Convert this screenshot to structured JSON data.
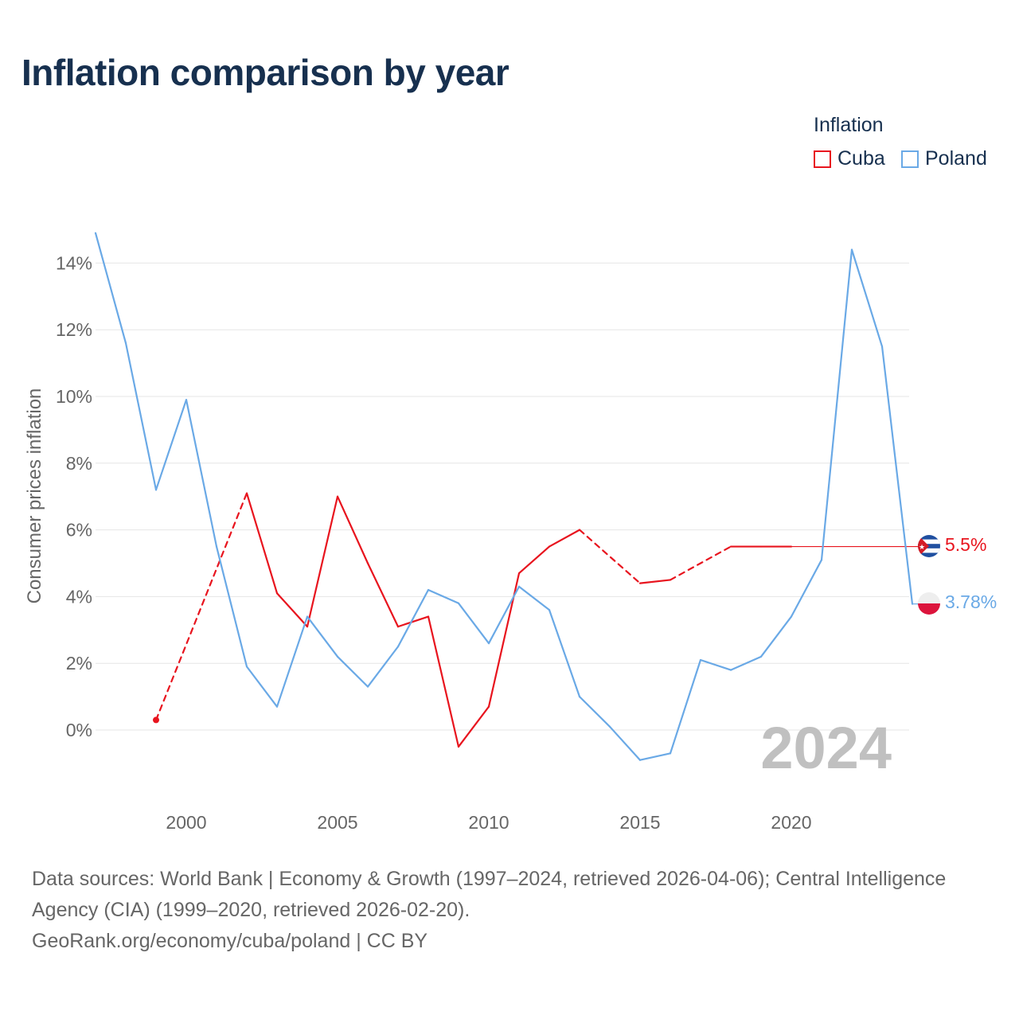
{
  "title": "Inflation comparison by year",
  "legend": {
    "title": "Inflation",
    "items": [
      {
        "label": "Cuba",
        "color": "#e8141e"
      },
      {
        "label": "Poland",
        "color": "#6aa9e6"
      }
    ]
  },
  "chart_data": {
    "type": "line",
    "title": "Inflation comparison by year",
    "ylabel": "Consumer prices inflation",
    "xlabel": "",
    "xlim": [
      1997,
      2024
    ],
    "ylim": [
      -2,
      15
    ],
    "y_ticks": [
      0,
      2,
      4,
      6,
      8,
      10,
      12,
      14
    ],
    "y_tick_labels": [
      "0%",
      "2%",
      "4%",
      "6%",
      "8%",
      "10%",
      "12%",
      "14%"
    ],
    "x_ticks": [
      2000,
      2005,
      2010,
      2015,
      2020
    ],
    "x_tick_labels": [
      "2000",
      "2005",
      "2010",
      "2015",
      "2020"
    ],
    "year_watermark": "2024",
    "series": [
      {
        "name": "Cuba",
        "color": "#e8141e",
        "flag": "cuba-flag",
        "end_label": "5.5%",
        "points": [
          [
            1999,
            0.3
          ],
          [
            2002,
            7.1
          ],
          [
            2003,
            4.1
          ],
          [
            2004,
            3.1
          ],
          [
            2005,
            7.0
          ],
          [
            2006,
            5.0
          ],
          [
            2007,
            3.1
          ],
          [
            2008,
            3.4
          ],
          [
            2009,
            -0.5
          ],
          [
            2010,
            0.7
          ],
          [
            2011,
            4.7
          ],
          [
            2012,
            5.5
          ],
          [
            2013,
            6.0
          ],
          [
            2015,
            4.4
          ],
          [
            2016,
            4.5
          ],
          [
            2018,
            5.5
          ],
          [
            2019,
            5.5
          ],
          [
            2020,
            5.5
          ]
        ],
        "dashed_segments": [
          [
            1999,
            2002
          ],
          [
            2013,
            2015
          ],
          [
            2016,
            2018
          ]
        ],
        "carry_forward_to": 2024,
        "value_2024": 5.5
      },
      {
        "name": "Poland",
        "color": "#6aa9e6",
        "flag": "poland-flag",
        "end_label": "3.78%",
        "points": [
          [
            1997,
            14.9
          ],
          [
            1998,
            11.6
          ],
          [
            1999,
            7.2
          ],
          [
            2000,
            9.9
          ],
          [
            2001,
            5.5
          ],
          [
            2002,
            1.9
          ],
          [
            2003,
            0.7
          ],
          [
            2004,
            3.4
          ],
          [
            2005,
            2.2
          ],
          [
            2006,
            1.3
          ],
          [
            2007,
            2.5
          ],
          [
            2008,
            4.2
          ],
          [
            2009,
            3.8
          ],
          [
            2010,
            2.6
          ],
          [
            2011,
            4.3
          ],
          [
            2012,
            3.6
          ],
          [
            2013,
            1.0
          ],
          [
            2014,
            0.1
          ],
          [
            2015,
            -0.9
          ],
          [
            2016,
            -0.7
          ],
          [
            2017,
            2.1
          ],
          [
            2018,
            1.8
          ],
          [
            2019,
            2.2
          ],
          [
            2020,
            3.4
          ],
          [
            2021,
            5.1
          ],
          [
            2022,
            14.4
          ],
          [
            2023,
            11.5
          ],
          [
            2024,
            3.78
          ]
        ]
      }
    ]
  },
  "footer": {
    "sources": "Data sources: World Bank | Economy & Growth (1997–2024, retrieved 2026-04-06); Central Intelligence Agency (CIA) (1999–2020, retrieved 2026-02-20).",
    "credit": "GeoRank.org/economy/cuba/poland | CC BY"
  },
  "colors": {
    "title": "#17304f",
    "axis_text": "#666666",
    "grid": "#e6e6e6",
    "watermark": "#c0c0c0"
  }
}
